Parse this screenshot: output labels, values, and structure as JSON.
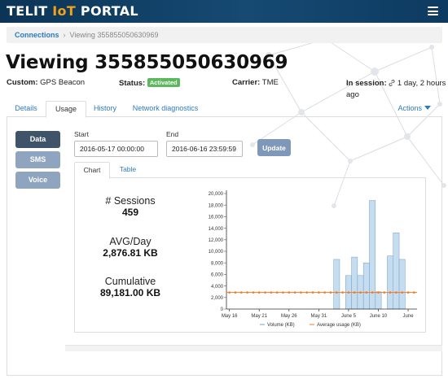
{
  "header": {
    "logo_prefix": "TELIT ",
    "logo_accent": "IoT",
    "logo_suffix": " PORTAL",
    "accent_color": "#f0a21a",
    "bg_color": "#0f3a5f"
  },
  "breadcrumb": {
    "link": "Connections",
    "current": "Viewing 355855050630969"
  },
  "page": {
    "title": "Viewing 355855050630969",
    "custom_label": "Custom:",
    "custom_value": "GPS Beacon",
    "status_label": "Status:",
    "status_value": "Activated",
    "carrier_label": "Carrier:",
    "carrier_value": "TME",
    "session_label": "In session:",
    "session_value": "1 day, 2 hours ago"
  },
  "tabs": [
    {
      "label": "Details"
    },
    {
      "label": "Usage"
    },
    {
      "label": "History"
    },
    {
      "label": "Network diagnostics"
    }
  ],
  "actions_label": "Actions",
  "side_buttons": [
    {
      "label": "Data"
    },
    {
      "label": "SMS"
    },
    {
      "label": "Voice"
    }
  ],
  "filters": {
    "start_label": "Start",
    "start_value": "2016-05-17 00:00:00",
    "end_label": "End",
    "end_value": "2016-06-16 23:59:59",
    "update_label": "Update"
  },
  "subtabs": [
    {
      "label": "Chart"
    },
    {
      "label": "Table"
    }
  ],
  "stats": {
    "sessions_label": "# Sessions",
    "sessions_value": "459",
    "avg_label": "AVG/Day",
    "avg_value": "2,876.81 KB",
    "cumulative_label": "Cumulative",
    "cumulative_value": "89,181.00 KB"
  },
  "chart_data": {
    "type": "bar",
    "ylim": [
      0,
      20000
    ],
    "y_ticks": [
      "0",
      "2,000",
      "4,000",
      "6,000",
      "8,000",
      "10,000",
      "12,000",
      "14,000",
      "16,000",
      "18,000",
      "20,000"
    ],
    "x_ticks": [
      {
        "day": 0,
        "label": "May 16"
      },
      {
        "day": 5,
        "label": "May 21"
      },
      {
        "day": 10,
        "label": "May 26"
      },
      {
        "day": 15,
        "label": "May 31"
      },
      {
        "day": 20,
        "label": "June 5"
      },
      {
        "day": 25,
        "label": "June 10"
      },
      {
        "day": 30,
        "label": "June"
      }
    ],
    "series": [
      {
        "name": "Volume (KB)",
        "color": "#c6dcef",
        "stroke": "#6f9fcf",
        "days": [
          0,
          1,
          2,
          3,
          4,
          5,
          6,
          7,
          8,
          9,
          10,
          11,
          12,
          13,
          14,
          15,
          16,
          17,
          18,
          19,
          20,
          21,
          22,
          23,
          24,
          25,
          26,
          27,
          28,
          29,
          30,
          31
        ],
        "values": [
          0,
          0,
          0,
          0,
          0,
          0,
          0,
          0,
          0,
          0,
          0,
          0,
          0,
          0,
          0,
          0,
          0,
          0,
          8600,
          0,
          5800,
          9000,
          5800,
          8000,
          18800,
          3000,
          0,
          9200,
          13200,
          8600,
          0,
          0
        ]
      },
      {
        "name": "Average usage (KB)",
        "color": "#f07b22",
        "value": 2876.81
      }
    ],
    "legend_position": "bottom"
  }
}
